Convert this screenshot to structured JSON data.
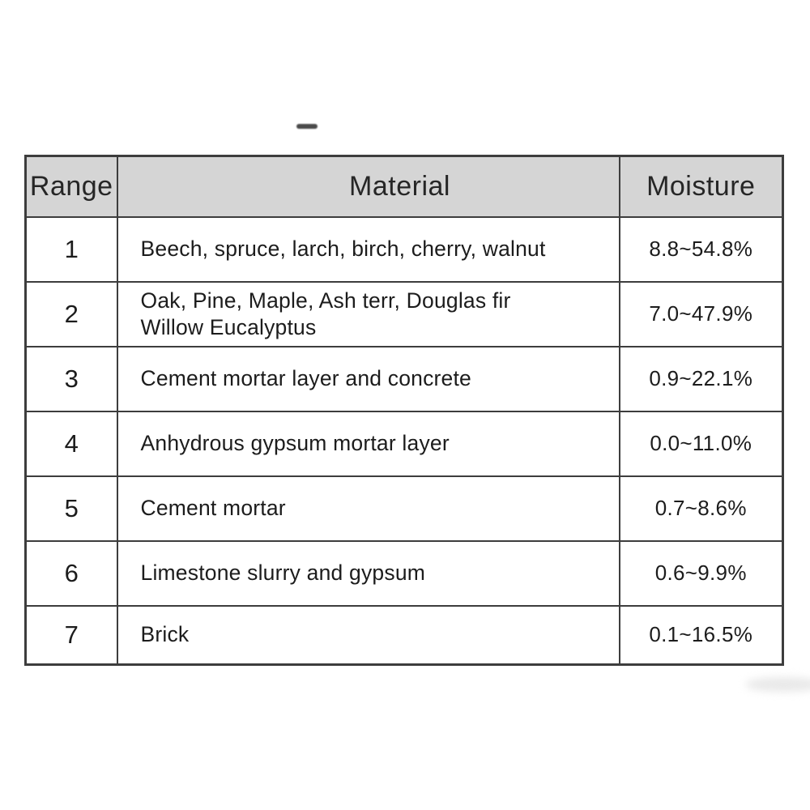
{
  "artifact": {
    "dash": ""
  },
  "table": {
    "header_bg": "#d5d5d5",
    "border_color": "#3d3d3d",
    "text_color": "#1c1c1c",
    "columns": [
      "Range",
      "Material",
      "Moisture"
    ],
    "rows": [
      {
        "range": "1",
        "material": "Beech, spruce, larch, birch, cherry, walnut",
        "moisture": "8.8~54.8%"
      },
      {
        "range": "2",
        "material": "Oak, Pine, Maple, Ash terr, Douglas fir\nWillow Eucalyptus",
        "moisture": "7.0~47.9%"
      },
      {
        "range": "3",
        "material": "Cement mortar layer and concrete",
        "moisture": "0.9~22.1%"
      },
      {
        "range": "4",
        "material": "Anhydrous gypsum mortar layer",
        "moisture": "0.0~11.0%"
      },
      {
        "range": "5",
        "material": "Cement mortar",
        "moisture": "0.7~8.6%"
      },
      {
        "range": "6",
        "material": "Limestone slurry and gypsum",
        "moisture": "0.6~9.9%"
      },
      {
        "range": "7",
        "material": "Brick",
        "moisture": "0.1~16.5%"
      }
    ]
  }
}
